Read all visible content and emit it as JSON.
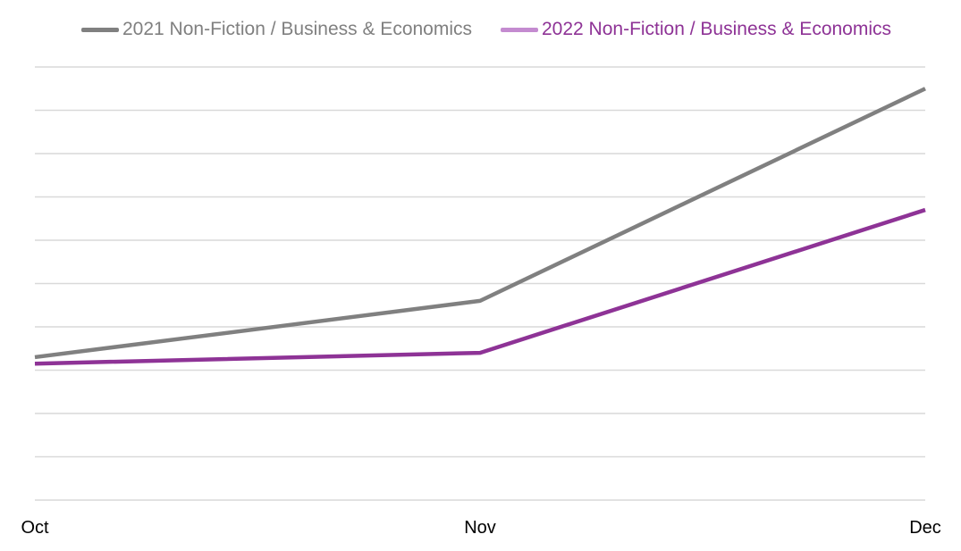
{
  "chart_data": {
    "type": "line",
    "categories": [
      "Oct",
      "Nov",
      "Dec"
    ],
    "series": [
      {
        "name": "2021 Non-Fiction / Business & Economics",
        "values": [
          3.3,
          4.6,
          9.5
        ],
        "color": "#808080"
      },
      {
        "name": "2022 Non-Fiction / Business & Economics",
        "values": [
          3.15,
          3.4,
          6.7
        ],
        "color": "#8e3396"
      }
    ],
    "ylim": [
      0,
      10
    ],
    "yticks_shown": false,
    "grid": true,
    "legend_position": "top"
  },
  "colors": {
    "legend_2022_swatch": "#c48bd0",
    "gridline": "#d9d9d9"
  }
}
